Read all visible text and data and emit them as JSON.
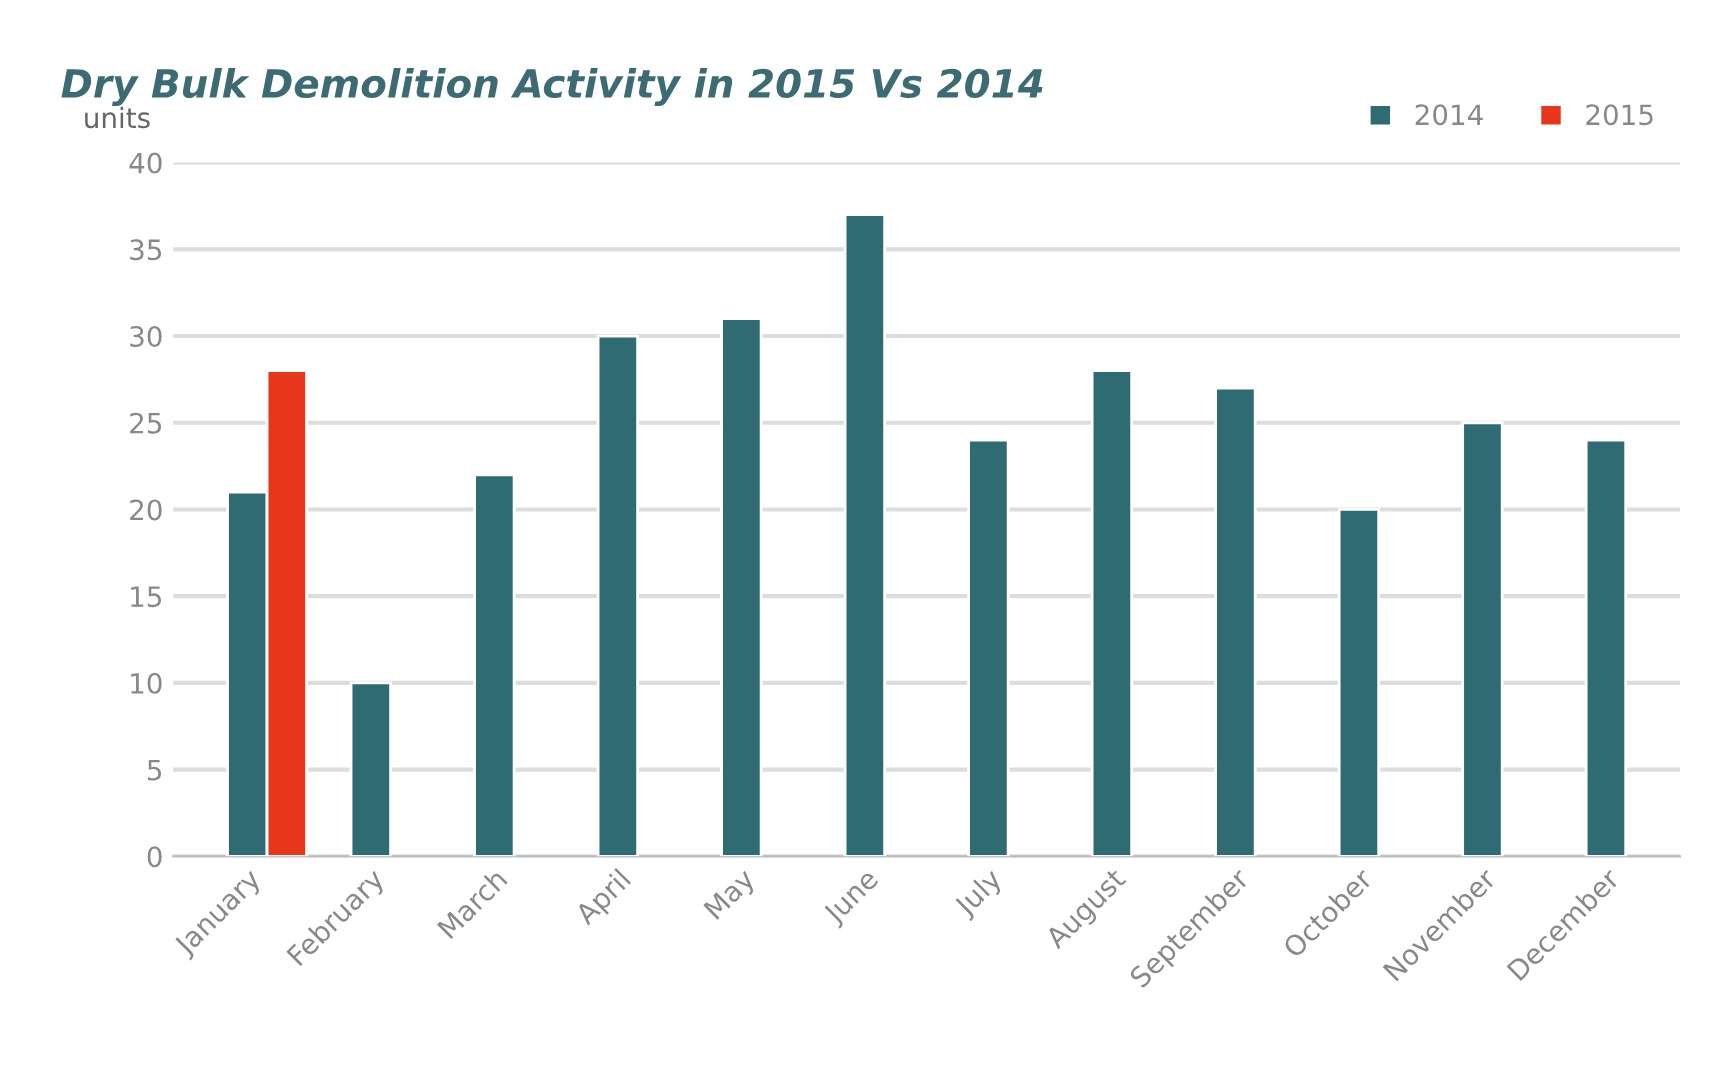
{
  "chart_data": {
    "type": "bar",
    "title": "Dry Bulk Demolition Activity in 2015 Vs 2014",
    "ylabel": "units",
    "categories": [
      "January",
      "February",
      "March",
      "April",
      "May",
      "June",
      "July",
      "August",
      "September",
      "October",
      "November",
      "December"
    ],
    "series": [
      {
        "name": "2014",
        "color": "#2e6b73",
        "values": [
          21,
          10,
          22,
          30,
          31,
          37,
          24,
          28,
          27,
          20,
          25,
          24
        ]
      },
      {
        "name": "2015",
        "color": "#e8361c",
        "values": [
          28,
          null,
          null,
          null,
          null,
          null,
          null,
          null,
          null,
          null,
          null,
          null
        ]
      }
    ],
    "ylim": [
      0,
      40
    ],
    "yticks": [
      0,
      5,
      10,
      15,
      20,
      25,
      30,
      35,
      40
    ],
    "grid": "y",
    "legend": "top right"
  }
}
